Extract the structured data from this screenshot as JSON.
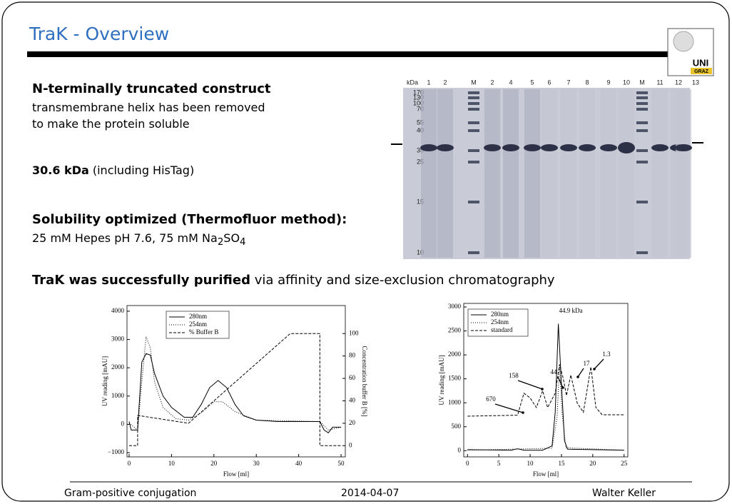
{
  "header": {
    "title": "TraK - Overview",
    "logo": "UNI",
    "logo_sub": "GRAZ"
  },
  "intro": {
    "heading": "N-terminally truncated construct",
    "lines": [
      "transmembrane helix has been removed",
      "to make the protein soluble"
    ]
  },
  "mass": {
    "value": "30.6 kDa",
    "note": "(including HisTag)"
  },
  "solubility": {
    "heading": "Solubility optimized (Thermofluor method):",
    "text": "25 mM Hepes pH 7.6, 75 mM Na",
    "sub1": "2",
    "mid": "SO",
    "sub2": "4"
  },
  "gel": {
    "unit": "kDa",
    "lanes": [
      "1",
      "2",
      "M",
      "2",
      "4",
      "5",
      "6",
      "7",
      "8",
      "9",
      "10",
      "M",
      "11",
      "12",
      "13"
    ],
    "markers": [
      "170",
      "130",
      "100",
      "70",
      "55",
      "40",
      "35",
      "25",
      "15",
      "10"
    ]
  },
  "summary": {
    "bold": "TraK was successfully purified",
    "rest": "via affinity and size-exclusion chromatography"
  },
  "chart_data": [
    {
      "type": "line",
      "xlabel": "Flow [ml]",
      "ylabel": "UV reading [mAU]",
      "y2label": "Concentration buffer B [%]",
      "xlim": [
        -0.5,
        51
      ],
      "xticks": [
        0,
        10,
        20,
        30,
        40,
        50
      ],
      "ylim": [
        -1150,
        4200
      ],
      "yticks": [
        {
          "value": -1000,
          "label": "−1000"
        },
        0,
        1000,
        2000,
        3000,
        4000
      ],
      "y2lim": [
        -10,
        125
      ],
      "y2ticks": [
        0,
        20,
        40,
        60,
        80,
        100
      ],
      "series": [
        {
          "name": "280nm",
          "color": "#000000",
          "style": "solid",
          "x": [
            0,
            0.5,
            2,
            3,
            4,
            5,
            6,
            8,
            10,
            13,
            15,
            17,
            19,
            21,
            23,
            25,
            27,
            30,
            35,
            45,
            46,
            47,
            48,
            50
          ],
          "values": [
            100,
            -200,
            -200,
            2200,
            2500,
            2450,
            1800,
            1000,
            600,
            250,
            250,
            700,
            1300,
            1550,
            1300,
            700,
            300,
            150,
            100,
            100,
            -200,
            -300,
            -100,
            -100
          ]
        },
        {
          "name": "254nm",
          "color": "#000000",
          "style": "dotted",
          "x": [
            0,
            2,
            3,
            4,
            5,
            6,
            8,
            11,
            14,
            17,
            20,
            22,
            25,
            30,
            45,
            47,
            50
          ],
          "values": [
            50,
            -200,
            1500,
            3100,
            2700,
            1500,
            600,
            200,
            150,
            400,
            800,
            800,
            450,
            150,
            100,
            -200,
            -100
          ]
        },
        {
          "name": "% Buffer B",
          "color": "#000000",
          "style": "dashed",
          "axis": "y2",
          "x": [
            0,
            2,
            2,
            14,
            38,
            45,
            45,
            50
          ],
          "values": [
            0,
            0,
            27,
            20,
            100,
            100,
            0,
            0
          ]
        }
      ]
    },
    {
      "type": "line",
      "xlabel": "Flow [ml]",
      "ylabel": "UV reading [mAU]",
      "xlim": [
        -0.6,
        25.6
      ],
      "xticks": [
        0,
        5,
        10,
        15,
        20,
        25
      ],
      "ylim": [
        -130,
        3075
      ],
      "yticks": [
        0,
        500,
        1000,
        1500,
        2000,
        2500,
        3000
      ],
      "annotations": [
        "44.9 kDa",
        "670",
        "158",
        "44",
        "17",
        "1.3"
      ],
      "series": [
        {
          "name": "280nm",
          "color": "#000000",
          "style": "solid",
          "x": [
            0,
            7,
            8,
            9,
            12,
            13.5,
            14,
            14.5,
            15,
            15.5,
            16,
            25
          ],
          "values": [
            20,
            10,
            40,
            10,
            10,
            100,
            800,
            2650,
            1400,
            200,
            30,
            10
          ]
        },
        {
          "name": "254nm",
          "color": "#000000",
          "style": "dotted",
          "x": [
            0,
            13.5,
            14.3,
            14.7,
            15.1,
            15.7,
            25
          ],
          "values": [
            10,
            50,
            700,
            1800,
            800,
            60,
            10
          ]
        },
        {
          "name": "standard",
          "color": "#000000",
          "style": "dashed",
          "x": [
            0,
            8,
            9,
            10,
            11,
            12,
            12.8,
            14,
            14.7,
            15.3,
            15.8,
            16.5,
            17.5,
            18.5,
            19.7,
            20.5,
            21.5,
            25
          ],
          "values": [
            720,
            740,
            1200,
            1100,
            900,
            1250,
            900,
            1200,
            1800,
            1500,
            1150,
            1580,
            1000,
            800,
            1750,
            900,
            750,
            750
          ]
        }
      ]
    }
  ],
  "footer": {
    "left": "Gram-positive conjugation",
    "date": "2014-04-07",
    "author": "Walter Keller"
  }
}
